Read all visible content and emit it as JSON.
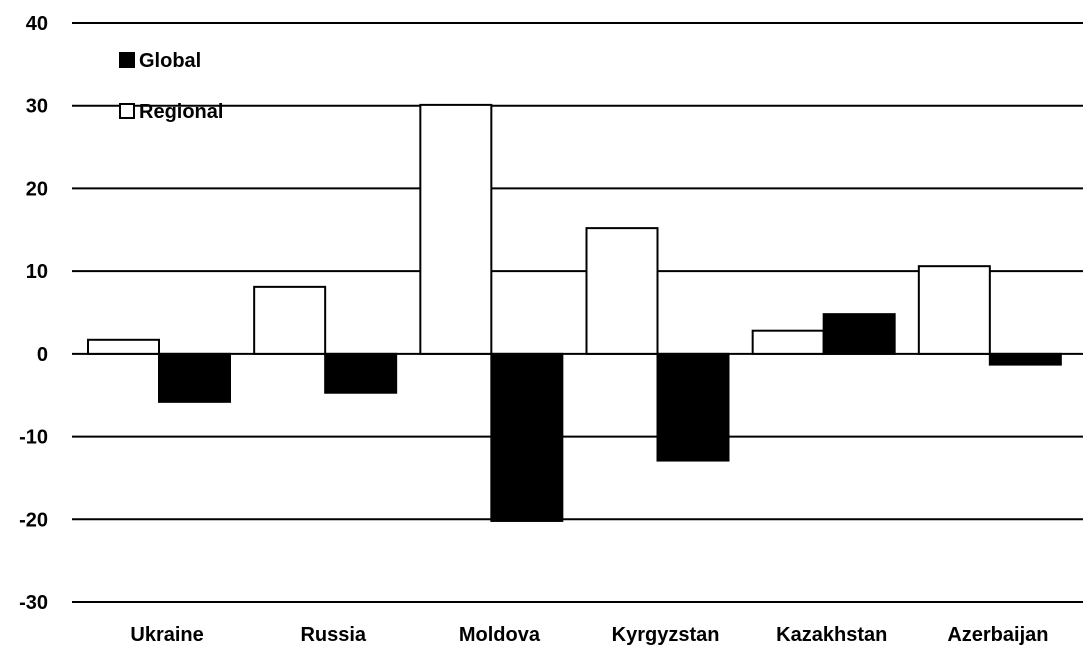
{
  "chart_data": {
    "type": "bar",
    "title": "",
    "xlabel": "",
    "ylabel": "",
    "categories": [
      "Ukraine",
      "Russia",
      "Moldova",
      "Kyrgyzstan",
      "Kazakhstan",
      "Azerbaijan"
    ],
    "series": [
      {
        "name": "Regional",
        "fill": "#ffffff",
        "stroke": "#000000",
        "values": [
          1.7,
          8.1,
          30.1,
          15.2,
          2.8,
          10.6
        ]
      },
      {
        "name": "Global",
        "fill": "#000000",
        "stroke": "#000000",
        "values": [
          -5.8,
          -4.7,
          -20.2,
          -12.9,
          4.8,
          -1.3
        ]
      }
    ],
    "ylim": [
      -30,
      40
    ],
    "yticks": [
      40,
      30,
      20,
      10,
      0,
      -10,
      -20,
      -30
    ],
    "grid": true,
    "legend_position": "top-left",
    "legend_order": [
      "Global",
      "Regional"
    ]
  }
}
